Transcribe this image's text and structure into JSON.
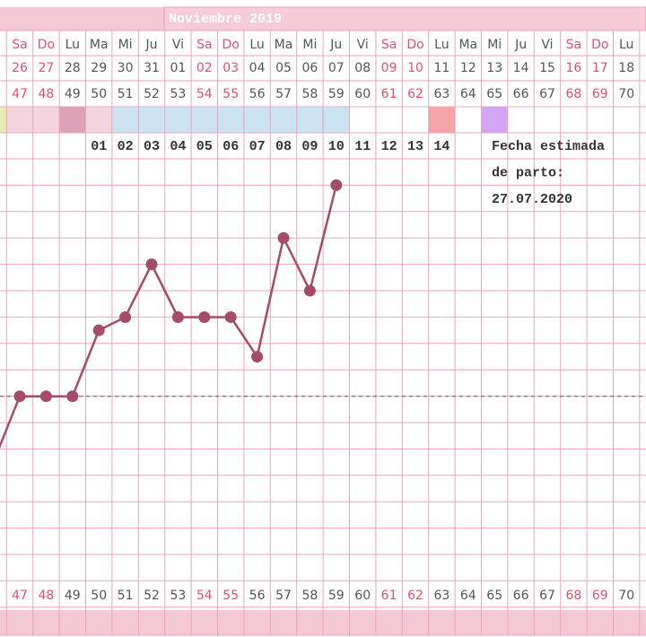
{
  "chart_data": {
    "type": "line",
    "title": "Noviembre 2019",
    "day_names": [
      null,
      "Sa",
      "Do",
      "Lu",
      "Ma",
      "Mi",
      "Ju",
      "Vi",
      "Sa",
      "Do",
      "Lu",
      "Ma",
      "Mi",
      "Ju",
      "Vi",
      "Sa",
      "Do",
      "Lu",
      "Ma",
      "Mi",
      "Ju",
      "Vi",
      "Sa",
      "Do",
      "Lu"
    ],
    "categories": [
      null,
      "26",
      "27",
      "28",
      "29",
      "30",
      "31",
      "01",
      "02",
      "03",
      "04",
      "05",
      "06",
      "07",
      "08",
      "09",
      "10",
      "11",
      "12",
      "13",
      "14",
      "15",
      "16",
      "17",
      "18"
    ],
    "cycle_days": [
      null,
      47,
      48,
      49,
      50,
      51,
      52,
      53,
      54,
      55,
      56,
      57,
      58,
      59,
      60,
      61,
      62,
      63,
      64,
      65,
      66,
      67,
      68,
      69,
      70
    ],
    "label_colors": [
      "#555555",
      "#e0506e",
      "#e0506e",
      "#555555",
      "#555555",
      "#555555",
      "#555555",
      "#555555",
      "#e0506e",
      "#e0506e",
      "#555555",
      "#555555",
      "#555555",
      "#555555",
      "#555555",
      "#e0506e",
      "#e0506e",
      "#555555",
      "#555555",
      "#555555",
      "#555555",
      "#555555",
      "#e0506e",
      "#e0506e",
      "#555555"
    ],
    "cell_colors": [
      "#e4ecb4",
      "#f4d4de",
      "#f4d4de",
      "#dea2b8",
      "#f4d4de",
      "#cde3f2",
      "#cde3f2",
      "#cde3f2",
      "#cde3f2",
      "#cde3f2",
      "#cde3f2",
      "#cde3f2",
      "#cde3f2",
      "#cde3f2",
      "#ffffff",
      "#ffffff",
      "#ffffff",
      "#f4a4a4",
      "#ffffff",
      "#d2a6f4",
      "#ffffff",
      "#ffffff",
      "#ffffff",
      "#ffffff",
      "#ffffff"
    ],
    "day_numbers": [
      null,
      null,
      null,
      null,
      "01",
      "02",
      "03",
      "04",
      "05",
      "06",
      "07",
      "08",
      "09",
      "10",
      "11",
      "12",
      "13",
      "14",
      null,
      null,
      null,
      null,
      null,
      null,
      null
    ],
    "values": [
      5.5,
      8,
      8,
      8,
      10.5,
      11,
      13,
      11,
      11,
      11,
      9.5,
      14,
      12,
      16,
      null,
      null,
      null,
      null,
      null,
      null,
      null,
      null,
      null,
      null,
      null
    ],
    "color": "#a44c6a",
    "ylim": [
      0,
      17
    ],
    "coverline": 8,
    "annotation": [
      "Fecha estimada",
      "de parto:",
      "27.07.2020"
    ]
  }
}
